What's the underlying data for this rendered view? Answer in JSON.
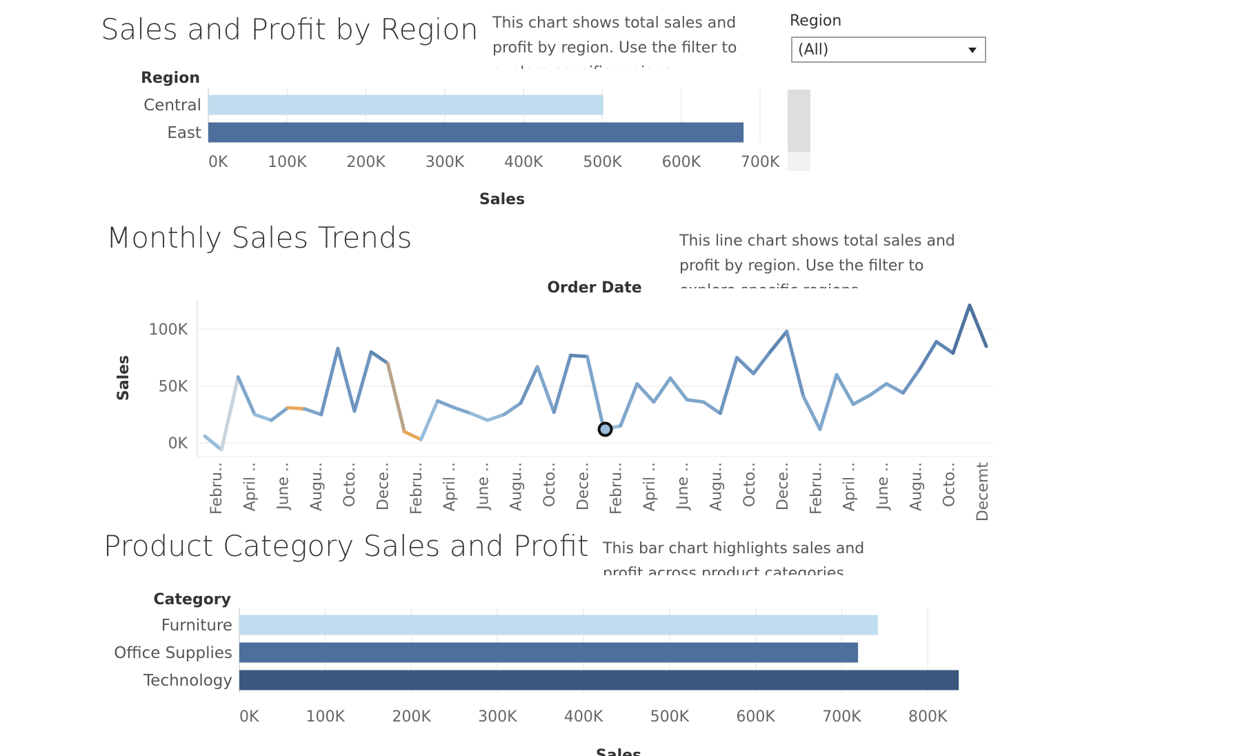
{
  "region_section": {
    "title": "Sales and Profit by Region",
    "description": "This chart shows total sales and profit by region. Use the filter to explore specific regions."
  },
  "filter": {
    "label": "Region",
    "selected": "(All)"
  },
  "trend_section": {
    "title": "Monthly Sales Trends",
    "description": "This line chart shows total sales and profit by region. Use the filter to explore specific regions."
  },
  "category_section": {
    "title": "Product Category Sales and Profit",
    "description": "This bar chart highlights sales and profit across product categories."
  },
  "colors": {
    "light_blue": "#c0dcef",
    "mid_blue": "#4e6f9b",
    "dark_blue": "#3a5780",
    "orange": "#e8a85a",
    "grid": "#eeeeee"
  },
  "chart_data": [
    {
      "type": "bar",
      "orientation": "horizontal",
      "dimension_label": "Region",
      "categories": [
        "Central",
        "East"
      ],
      "values": [
        501000,
        679000
      ],
      "bar_colors": [
        "#c0dcef",
        "#4e6f9b"
      ],
      "xlabel": "Sales",
      "xlim": [
        0,
        720000
      ],
      "xticks": [
        "0K",
        "100K",
        "200K",
        "300K",
        "400K",
        "500K",
        "600K",
        "700K"
      ],
      "grid": "vertical"
    },
    {
      "type": "line",
      "title": "Order Date",
      "ylabel": "Sales",
      "ylim": [
        -12000,
        125000
      ],
      "yticks": [
        "0K",
        "50K",
        "100K"
      ],
      "x_tick_labels": [
        "Febru..",
        "April ..",
        "June ..",
        "Augu..",
        "Octo..",
        "Dece..",
        "Febru..",
        "April ..",
        "June ..",
        "Augu..",
        "Octo..",
        "Dece..",
        "Febru..",
        "April ..",
        "June ..",
        "Augu..",
        "Octo..",
        "Dece..",
        "Febru..",
        "April ..",
        "June ..",
        "Augu..",
        "Octo..",
        "Decemt"
      ],
      "values": [
        6000,
        -6000,
        58000,
        25000,
        20000,
        31000,
        30000,
        25000,
        83000,
        28000,
        80000,
        70000,
        10000,
        3000,
        37000,
        31000,
        26000,
        20000,
        25000,
        35000,
        67000,
        27000,
        77000,
        76000,
        12000,
        15000,
        52000,
        36000,
        57000,
        38000,
        36000,
        26000,
        75000,
        61000,
        80000,
        98000,
        41000,
        12000,
        60000,
        34000,
        42000,
        52000,
        44000,
        65000,
        89000,
        79000,
        121000,
        85000
      ],
      "highlighted_index": 24,
      "grid": "horizontal"
    },
    {
      "type": "bar",
      "orientation": "horizontal",
      "dimension_label": "Category",
      "categories": [
        "Furniture",
        "Office Supplies",
        "Technology"
      ],
      "values": [
        742000,
        719000,
        836000
      ],
      "bar_colors": [
        "#c0dcef",
        "#4e6f9b",
        "#3a5780"
      ],
      "xlabel": "Sales",
      "xlim": [
        0,
        880000
      ],
      "xticks": [
        "0K",
        "100K",
        "200K",
        "300K",
        "400K",
        "500K",
        "600K",
        "700K",
        "800K"
      ],
      "grid": "vertical"
    }
  ]
}
